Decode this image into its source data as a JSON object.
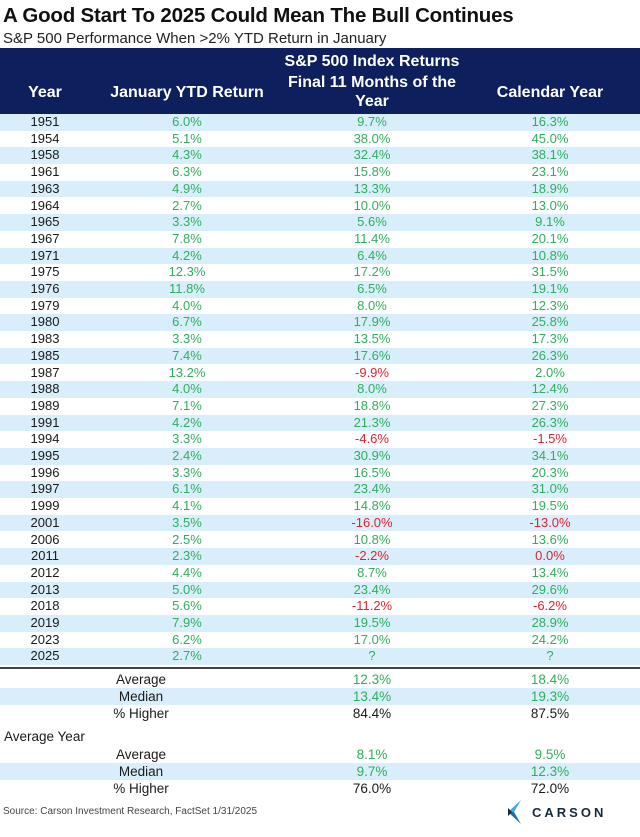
{
  "title": "A Good Start To 2025 Could Mean The Bull Continues",
  "subtitle": "S&P 500 Performance When >2% YTD Return in January",
  "colors": {
    "header_bg": "#0d1f5c",
    "band": "#d8eefb",
    "positive": "#2fae5e",
    "negative": "#e5202e"
  },
  "chart_data": {
    "type": "table",
    "group_header": "S&P 500 Index Returns",
    "columns": [
      "Year",
      "January YTD Return",
      "Final 11 Months of the Year",
      "Calendar Year"
    ],
    "rows": [
      [
        "1951",
        "6.0%",
        "9.7%",
        "16.3%"
      ],
      [
        "1954",
        "5.1%",
        "38.0%",
        "45.0%"
      ],
      [
        "1958",
        "4.3%",
        "32.4%",
        "38.1%"
      ],
      [
        "1961",
        "6.3%",
        "15.8%",
        "23.1%"
      ],
      [
        "1963",
        "4.9%",
        "13.3%",
        "18.9%"
      ],
      [
        "1964",
        "2.7%",
        "10.0%",
        "13.0%"
      ],
      [
        "1965",
        "3.3%",
        "5.6%",
        "9.1%"
      ],
      [
        "1967",
        "7.8%",
        "11.4%",
        "20.1%"
      ],
      [
        "1971",
        "4.2%",
        "6.4%",
        "10.8%"
      ],
      [
        "1975",
        "12.3%",
        "17.2%",
        "31.5%"
      ],
      [
        "1976",
        "11.8%",
        "6.5%",
        "19.1%"
      ],
      [
        "1979",
        "4.0%",
        "8.0%",
        "12.3%"
      ],
      [
        "1980",
        "6.7%",
        "17.9%",
        "25.8%"
      ],
      [
        "1983",
        "3.3%",
        "13.5%",
        "17.3%"
      ],
      [
        "1985",
        "7.4%",
        "17.6%",
        "26.3%"
      ],
      [
        "1987",
        "13.2%",
        "-9.9%",
        "2.0%"
      ],
      [
        "1988",
        "4.0%",
        "8.0%",
        "12.4%"
      ],
      [
        "1989",
        "7.1%",
        "18.8%",
        "27.3%"
      ],
      [
        "1991",
        "4.2%",
        "21.3%",
        "26.3%"
      ],
      [
        "1994",
        "3.3%",
        "-4.6%",
        "-1.5%"
      ],
      [
        "1995",
        "2.4%",
        "30.9%",
        "34.1%"
      ],
      [
        "1996",
        "3.3%",
        "16.5%",
        "20.3%"
      ],
      [
        "1997",
        "6.1%",
        "23.4%",
        "31.0%"
      ],
      [
        "1999",
        "4.1%",
        "14.8%",
        "19.5%"
      ],
      [
        "2001",
        "3.5%",
        "-16.0%",
        "-13.0%"
      ],
      [
        "2006",
        "2.5%",
        "10.8%",
        "13.6%"
      ],
      [
        "2011",
        "2.3%",
        "-2.2%",
        "0.0%"
      ],
      [
        "2012",
        "4.4%",
        "8.7%",
        "13.4%"
      ],
      [
        "2013",
        "5.0%",
        "23.4%",
        "29.6%"
      ],
      [
        "2018",
        "5.6%",
        "-11.2%",
        "-6.2%"
      ],
      [
        "2019",
        "7.9%",
        "19.5%",
        "28.9%"
      ],
      [
        "2023",
        "6.2%",
        "17.0%",
        "24.2%"
      ],
      [
        "2025",
        "2.7%",
        "?",
        "?"
      ]
    ],
    "negative_cells": [
      [
        "1987",
        "Final 11 Months of the Year"
      ],
      [
        "1994",
        "Final 11 Months of the Year"
      ],
      [
        "1994",
        "Calendar Year"
      ],
      [
        "2001",
        "Final 11 Months of the Year"
      ],
      [
        "2001",
        "Calendar Year"
      ],
      [
        "2011",
        "Final 11 Months of the Year"
      ],
      [
        "2011",
        "Calendar Year"
      ],
      [
        "2018",
        "Final 11 Months of the Year"
      ],
      [
        "2018",
        "Calendar Year"
      ]
    ],
    "summary": [
      {
        "label": "Average",
        "final11": "12.3%",
        "calendar": "18.4%"
      },
      {
        "label": "Median",
        "final11": "13.4%",
        "calendar": "19.3%"
      },
      {
        "label": "% Higher",
        "final11": "84.4%",
        "calendar": "87.5%"
      }
    ],
    "average_year_label": "Average Year",
    "average_year": [
      {
        "label": "Average",
        "final11": "8.1%",
        "calendar": "9.5%"
      },
      {
        "label": "Median",
        "final11": "9.7%",
        "calendar": "12.3%"
      },
      {
        "label": "% Higher",
        "final11": "76.0%",
        "calendar": "72.0%"
      }
    ]
  },
  "source": "Source: Carson Investment Research, FactSet 1/31/2025",
  "logo_text": "CARSON"
}
